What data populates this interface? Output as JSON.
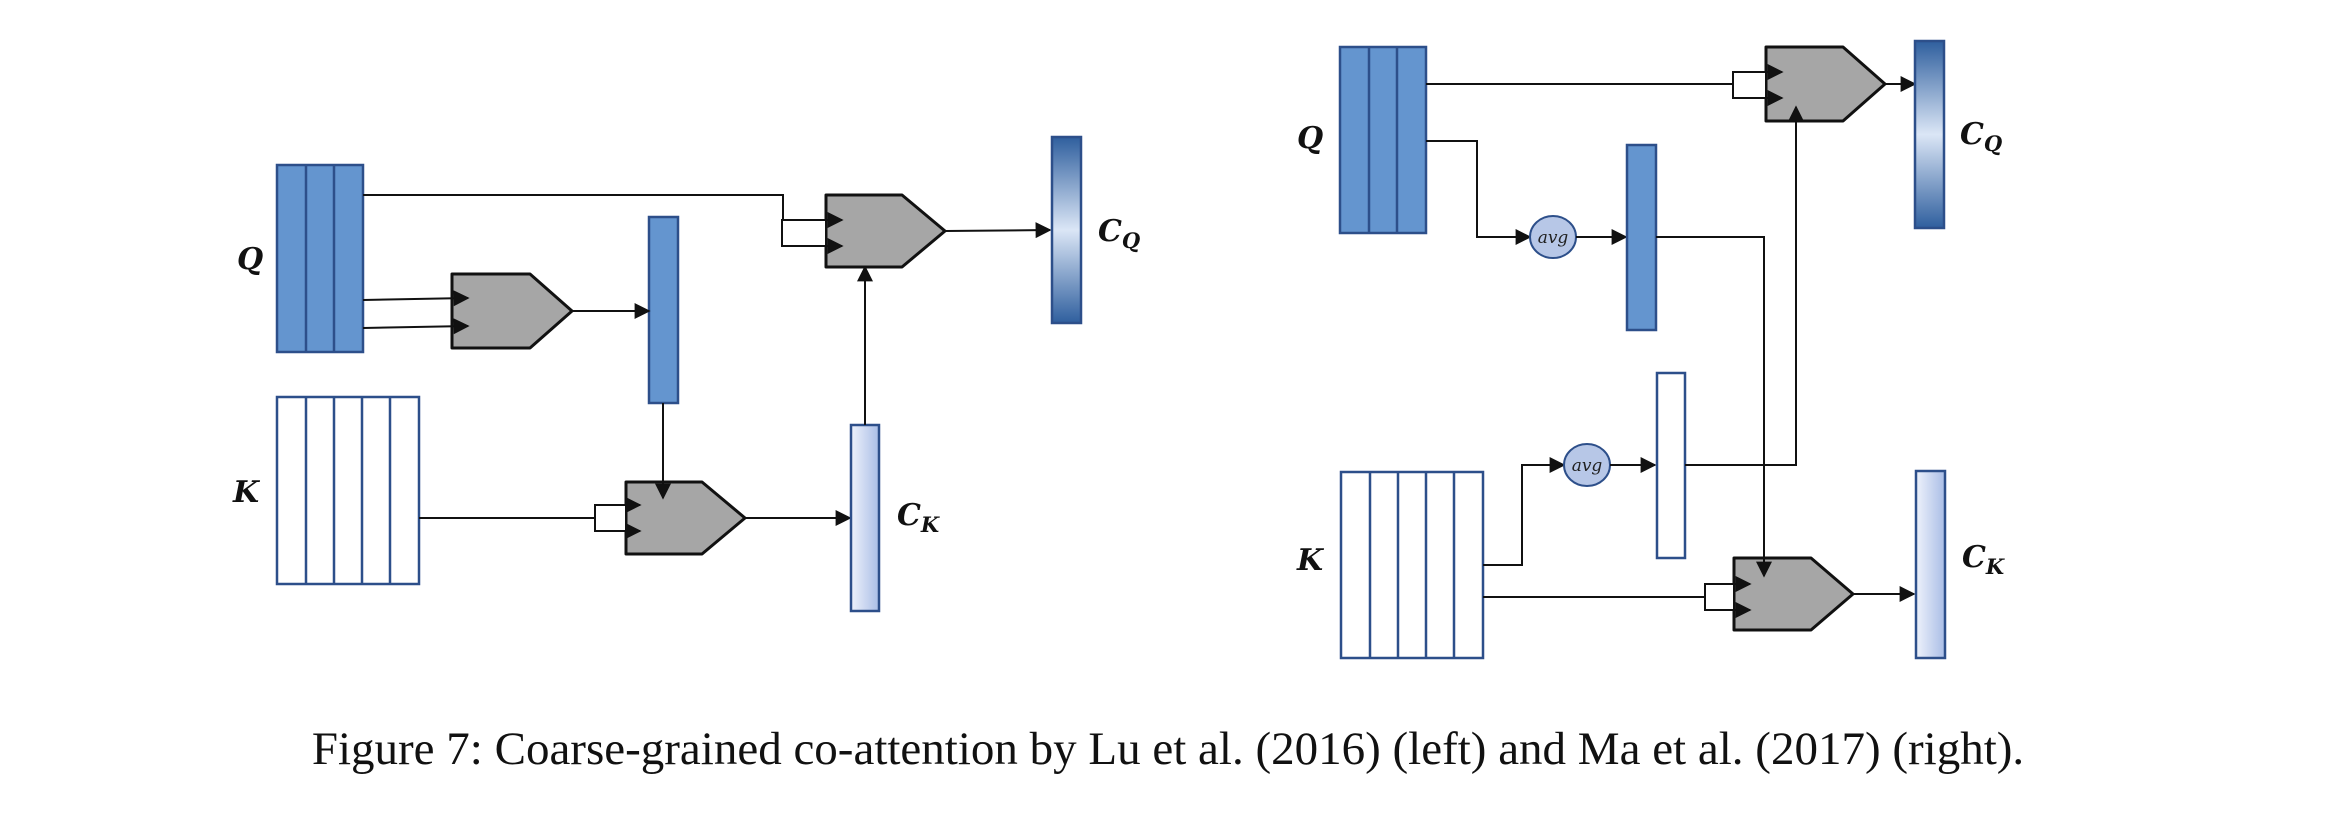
{
  "labels": {
    "q_left": "Q",
    "k_left": "K",
    "cq_left_main": "C",
    "cq_left_sub": "Q",
    "ck_left_main": "C",
    "ck_left_sub": "K",
    "q_right": "Q",
    "k_right": "K",
    "cq_right_main": "C",
    "cq_right_sub": "Q",
    "ck_right_main": "C",
    "ck_right_sub": "K",
    "avg_top": "avg",
    "avg_bottom": "avg"
  },
  "caption": "Figure 7: Coarse-grained co-attention by Lu et al. (2016) (left) and Ma et al. (2017) (right).",
  "colors": {
    "matrix_fill": "#6495cf",
    "matrix_stroke": "#2d4f8a",
    "gate_fill": "#a6a6a6",
    "avg_fill": "#b7c7e7"
  }
}
